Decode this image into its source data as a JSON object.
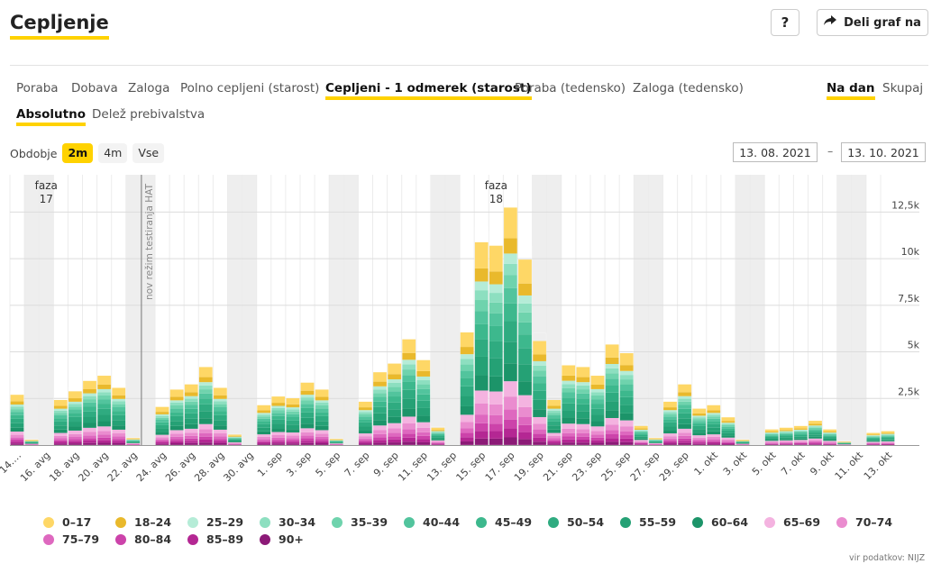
{
  "header": {
    "title": "Cepljenje",
    "help_label": "?",
    "share_label": "Deli graf na"
  },
  "tabs": [
    {
      "label": "Poraba",
      "active": false
    },
    {
      "label": "Dobava",
      "active": false
    },
    {
      "label": "Zaloga",
      "active": false
    },
    {
      "label": "Polno cepljeni (starost)",
      "active": false
    },
    {
      "label": "Cepljeni - 1 odmerek (starost)",
      "active": true
    },
    {
      "label": "Poraba (tedensko)",
      "active": false
    },
    {
      "label": "Zaloga (tedensko)",
      "active": false
    }
  ],
  "modes": [
    {
      "label": "Na dan",
      "active": true
    },
    {
      "label": "Skupaj",
      "active": false
    }
  ],
  "measures": [
    {
      "label": "Absolutno",
      "active": true
    },
    {
      "label": "Delež prebivalstva",
      "active": false
    }
  ],
  "period": {
    "label": "Obdobje",
    "options": [
      {
        "label": "2m",
        "active": true
      },
      {
        "label": "4m",
        "active": false
      },
      {
        "label": "Vse",
        "active": false
      }
    ],
    "date_from": "13. 08. 2021",
    "date_separator": "–",
    "date_to": "13. 10. 2021"
  },
  "source": "vir podatkov: NIJZ",
  "chart_data": {
    "type": "bar",
    "stacked": true,
    "categories": [
      "14.…",
      "15. avg",
      "16. avg",
      "17. avg",
      "18. avg",
      "19. avg",
      "20. avg",
      "21. avg",
      "22. avg",
      "23. avg",
      "24. avg",
      "25. avg",
      "26. avg",
      "27. avg",
      "28. avg",
      "29. avg",
      "30. avg",
      "31. avg",
      "1. sep",
      "2. sep",
      "3. sep",
      "4. sep",
      "5. sep",
      "6. sep",
      "7. sep",
      "8. sep",
      "9. sep",
      "10. sep",
      "11. sep",
      "12. sep",
      "13. sep",
      "14. sep",
      "15. sep",
      "16. sep",
      "17. sep",
      "18. sep",
      "19. sep",
      "20. sep",
      "21. sep",
      "22. sep",
      "23. sep",
      "24. sep",
      "25. sep",
      "26. sep",
      "27. sep",
      "28. sep",
      "29. sep",
      "30. sep",
      "1. okt",
      "2. okt",
      "3. okt",
      "4. okt",
      "5. okt",
      "6. okt",
      "7. okt",
      "8. okt",
      "9. okt",
      "10. okt",
      "11. okt",
      "12. okt",
      "13. okt"
    ],
    "x_tick_labels": [
      "14.…",
      "16. avg",
      "18. avg",
      "20. avg",
      "22. avg",
      "24. avg",
      "26. avg",
      "28. avg",
      "30. avg",
      "1. sep",
      "3. sep",
      "5. sep",
      "7. sep",
      "9. sep",
      "11. sep",
      "13. sep",
      "15. sep",
      "17. sep",
      "19. sep",
      "21. sep",
      "23. sep",
      "25. sep",
      "27. sep",
      "29. sep",
      "1. okt",
      "3. okt",
      "5. okt",
      "7. okt",
      "9. okt",
      "11. okt",
      "13. okt"
    ],
    "totals": [
      2900,
      300,
      0,
      2600,
      3100,
      3700,
      4000,
      3300,
      400,
      0,
      2200,
      3200,
      3500,
      4500,
      3300,
      600,
      0,
      2300,
      2800,
      2700,
      3600,
      3200,
      350,
      0,
      2500,
      4200,
      4700,
      6100,
      4900,
      1000,
      0,
      6500,
      11700,
      11500,
      13700,
      10700,
      6000,
      2600,
      4600,
      4500,
      4000,
      5800,
      5300,
      1100,
      400,
      2500,
      3500,
      2100,
      2300,
      1600,
      300,
      0,
      900,
      1000,
      1100,
      1400,
      900,
      200,
      0,
      700,
      800
    ],
    "age_groups": [
      "0–17",
      "18–24",
      "25–29",
      "30–34",
      "35–39",
      "40–44",
      "45–49",
      "50–54",
      "55–59",
      "60–64",
      "65–69",
      "70–74",
      "75–79",
      "80–84",
      "85–89",
      "90+"
    ],
    "age_colors": [
      "#fed766",
      "#e9b92c",
      "#b5ecd7",
      "#8ddfc0",
      "#6fd3ad",
      "#52c49d",
      "#3db88d",
      "#2fab80",
      "#25a175",
      "#1c9469",
      "#f4b3e0",
      "#ea8ccf",
      "#de68bf",
      "#cc43aa",
      "#b42793",
      "#8c1a77"
    ],
    "y_ticks": [
      "2,5k",
      "5k",
      "7,5k",
      "10k",
      "12,5k"
    ],
    "ylim": [
      0,
      14500
    ],
    "weekend_shading": true,
    "annotations": [
      {
        "type": "band",
        "label": "faza",
        "sublabel": "17",
        "x": "16. avg"
      },
      {
        "type": "vline",
        "label": "nov režim testiranja HAT",
        "x": "23. avg"
      },
      {
        "type": "band",
        "label": "faza",
        "sublabel": "18",
        "x": "16. sep"
      }
    ],
    "legend_position": "bottom"
  }
}
